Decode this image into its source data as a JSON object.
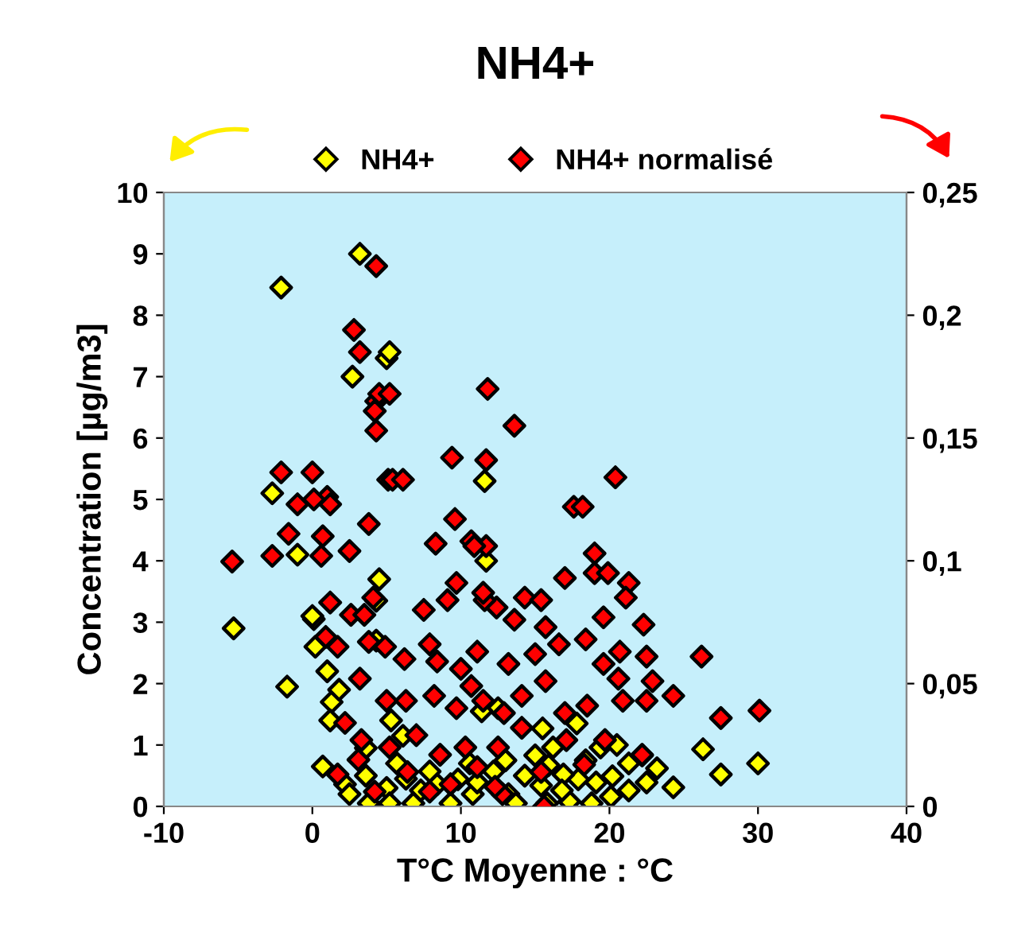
{
  "chart_data": {
    "type": "scatter",
    "title": "NH4+",
    "xlabel": "T°C Moyenne : °C",
    "ylabel": "Concentration [µg/m3]",
    "marker": "diamond",
    "legend": "top",
    "grid": false,
    "xlim": [
      -10,
      40
    ],
    "xticks": [
      -10,
      0,
      10,
      20,
      30,
      40
    ],
    "ylim": [
      0,
      10
    ],
    "yticks": [
      0,
      1,
      2,
      3,
      4,
      5,
      6,
      7,
      8,
      9,
      10
    ],
    "y2lim": [
      0,
      0.25
    ],
    "y2ticks": [
      {
        "value": 0,
        "label": "0"
      },
      {
        "value": 0.05,
        "label": "0,05"
      },
      {
        "value": 0.1,
        "label": "0,1"
      },
      {
        "value": 0.15,
        "label": "0,15"
      },
      {
        "value": 0.2,
        "label": "0,2"
      },
      {
        "value": 0.25,
        "label": "0,25"
      }
    ],
    "series": [
      {
        "name": "NH4+",
        "color": "#ffff00",
        "x": [
          -5.3,
          -2.1,
          -2.7,
          -1.7,
          -1.0,
          0.1,
          0.2,
          0.7,
          1.0,
          1.3,
          3.2,
          2.7,
          5.0,
          5.2,
          4.5,
          4.3,
          11.6,
          11.7,
          0.0,
          1.8,
          1.2,
          5.3,
          4.3,
          2.2,
          3.6,
          5.0,
          6.8,
          9.3,
          8.4,
          10.8,
          13.2,
          14.3,
          12.5,
          11.4,
          17.8,
          26.3,
          27.5,
          30.0,
          24.3,
          23.2,
          22.5,
          22.2,
          21.3,
          20.2,
          19.1,
          17.9,
          16.9,
          15.9,
          15.4,
          13.7,
          17.3,
          20.1,
          21.3,
          2.5,
          3.8,
          5.7,
          6.3,
          7.3,
          7.9,
          9.8,
          10.6,
          11.1,
          12.2,
          13.0,
          15.0,
          16.2,
          16.8,
          18.4,
          19.4,
          20.5,
          18.8,
          15.8,
          5.2,
          6.1,
          3.6,
          15.5
        ],
        "values": [
          2.9,
          8.45,
          5.1,
          1.95,
          4.1,
          3.05,
          2.6,
          0.65,
          2.2,
          1.7,
          9.0,
          7.0,
          7.3,
          7.4,
          3.7,
          3.35,
          5.3,
          4.0,
          3.1,
          1.9,
          1.4,
          1.4,
          2.7,
          0.36,
          0.5,
          0.3,
          0.05,
          0.05,
          0.36,
          0.2,
          0.2,
          0.5,
          1.6,
          1.55,
          1.35,
          0.93,
          0.52,
          0.7,
          0.31,
          0.62,
          0.39,
          0.83,
          0.7,
          0.49,
          0.39,
          0.44,
          0.52,
          0.67,
          0.34,
          0.05,
          0.08,
          0.16,
          0.26,
          0.2,
          0.05,
          0.7,
          0.45,
          0.26,
          0.57,
          0.44,
          0.7,
          0.39,
          0.57,
          0.75,
          0.83,
          0.96,
          0.26,
          0.75,
          0.96,
          1.0,
          0.05,
          0.05,
          0.05,
          1.15,
          0.95,
          1.27
        ]
      },
      {
        "name": "NH4+ normalisé",
        "color": "#ff0000",
        "axis": "y2",
        "x": [
          4.3,
          2.8,
          3.2,
          4.3,
          4.5,
          4.2,
          5.2,
          4.3,
          11.8,
          13.6,
          9.4,
          11.7,
          0.0,
          -2.1,
          5.1,
          5.4,
          6.1,
          1.0,
          1.2,
          -1.0,
          -5.4,
          -2.7,
          -1.6,
          0.7,
          3.8,
          0.1,
          0.6,
          2.5,
          8.3,
          9.6,
          10.7,
          11.7,
          20.4,
          17.6,
          18.2,
          19.0,
          19.0,
          19.9,
          21.3,
          21.1,
          22.3,
          19.6,
          17.0,
          14.3,
          15.4,
          13.6,
          12.4,
          15.7,
          16.6,
          18.4,
          19.6,
          20.7,
          22.5,
          22.9,
          20.6,
          26.2,
          27.5,
          30.1,
          24.3,
          22.5,
          20.9,
          18.5,
          17.0,
          15.7,
          14.1,
          12.9,
          11.5,
          12.5,
          14.1,
          17.1,
          19.7,
          22.2,
          15.4,
          12.8,
          15.6,
          18.3,
          13.2,
          11.1,
          15.0,
          10.9,
          4.1,
          1.2,
          2.6,
          3.5,
          7.5,
          9.1,
          11.6,
          9.7,
          11.5,
          0.9,
          1.7,
          3.8,
          4.9,
          6.2,
          7.9,
          8.4,
          10.0,
          3.2,
          5.0,
          6.3,
          8.2,
          9.7,
          10.7,
          2.2,
          3.3,
          5.2,
          7.0,
          8.6,
          10.3,
          4.2,
          7.9,
          9.3,
          11.1,
          12.3,
          6.4,
          3.1,
          1.7
        ],
        "values": [
          0.22,
          0.194,
          0.185,
          0.165,
          0.168,
          0.161,
          0.168,
          0.153,
          0.17,
          0.155,
          0.142,
          0.141,
          0.136,
          0.136,
          0.133,
          0.133,
          0.133,
          0.126,
          0.123,
          0.123,
          0.0997,
          0.102,
          0.111,
          0.11,
          0.115,
          0.125,
          0.102,
          0.104,
          0.107,
          0.117,
          0.108,
          0.106,
          0.134,
          0.122,
          0.122,
          0.103,
          0.095,
          0.095,
          0.091,
          0.085,
          0.074,
          0.077,
          0.093,
          0.085,
          0.084,
          0.076,
          0.081,
          0.073,
          0.066,
          0.068,
          0.058,
          0.063,
          0.061,
          0.051,
          0.052,
          0.061,
          0.036,
          0.039,
          0.045,
          0.043,
          0.043,
          0.041,
          0.038,
          0.051,
          0.045,
          0.038,
          0.043,
          0.024,
          0.032,
          0.027,
          0.027,
          0.021,
          0.014,
          0.005,
          0.0,
          0.017,
          0.058,
          0.063,
          0.062,
          0.106,
          0.085,
          0.083,
          0.078,
          0.078,
          0.08,
          0.084,
          0.084,
          0.091,
          0.087,
          0.069,
          0.065,
          0.067,
          0.065,
          0.06,
          0.066,
          0.059,
          0.056,
          0.052,
          0.043,
          0.043,
          0.045,
          0.04,
          0.049,
          0.034,
          0.027,
          0.024,
          0.029,
          0.021,
          0.024,
          0.006,
          0.006,
          0.009,
          0.016,
          0.008,
          0.014,
          0.019,
          0.013
        ]
      }
    ]
  }
}
